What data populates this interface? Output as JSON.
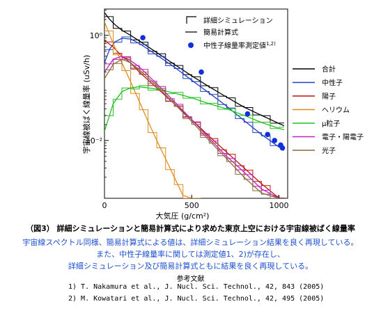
{
  "chart_data": {
    "type": "line",
    "title": "",
    "xlabel": "大気圧 (g/cm²)",
    "ylabel": "宇宙線被ばく線量率 (uSv/h)",
    "xlim": [
      0,
      1050
    ],
    "ylim_log10": [
      -3.1,
      0.5
    ],
    "y_scale": "log",
    "x_ticks": [
      0,
      500,
      1000
    ],
    "y_ticks": [
      {
        "value": 1,
        "label": "10⁰"
      },
      {
        "value": 0.01,
        "label": "10⁻²"
      }
    ],
    "style_legend": [
      {
        "label": "詳細シミュレーション",
        "style": "step"
      },
      {
        "label": "簡易計算式",
        "style": "line"
      },
      {
        "label": "中性子線量率測定値",
        "sup": "1,2)",
        "style": "marker"
      }
    ],
    "series_legend": [
      {
        "name": "合計",
        "color": "#000000"
      },
      {
        "name": "中性子",
        "color": "#1f3fbf"
      },
      {
        "name": "陽子",
        "color": "#c01010"
      },
      {
        "name": "ヘリウム",
        "color": "#e08a1e"
      },
      {
        "name": "μ粒子",
        "color": "#22c022"
      },
      {
        "name": "電子・陽電子",
        "color": "#c020c0"
      },
      {
        "name": "光子",
        "color": "#8a6a3a"
      }
    ],
    "series": [
      {
        "name": "合計",
        "x": [
          0,
          30,
          60,
          100,
          150,
          200,
          300,
          400,
          500,
          600,
          700,
          800,
          900,
          1000,
          1030
        ],
        "y": [
          2.7,
          2.0,
          1.6,
          1.25,
          1.0,
          0.78,
          0.47,
          0.28,
          0.17,
          0.105,
          0.067,
          0.043,
          0.03,
          0.021,
          0.019
        ]
      },
      {
        "name": "中性子",
        "x": [
          0,
          30,
          60,
          100,
          150,
          200,
          300,
          400,
          500,
          600,
          700,
          800,
          900,
          1000,
          1030
        ],
        "y": [
          0.3,
          0.55,
          0.75,
          0.88,
          0.85,
          0.7,
          0.42,
          0.25,
          0.14,
          0.08,
          0.045,
          0.024,
          0.013,
          0.0075,
          0.0065
        ]
      },
      {
        "name": "陽子",
        "x": [
          0,
          50,
          100,
          150,
          200,
          300,
          400,
          500,
          600,
          700,
          800,
          900,
          1000,
          1030
        ],
        "y": [
          0.8,
          0.6,
          0.4,
          0.3,
          0.2,
          0.1,
          0.05,
          0.025,
          0.012,
          0.006,
          0.003,
          0.0015,
          0.0008,
          0.0007
        ]
      },
      {
        "name": "ヘリウム",
        "x": [
          0,
          50,
          100,
          150,
          200,
          250,
          300,
          350,
          400,
          450,
          500,
          550
        ],
        "y": [
          1.8,
          0.7,
          0.3,
          0.13,
          0.055,
          0.023,
          0.01,
          0.0045,
          0.002,
          0.0009,
          0.0004,
          0.0002
        ]
      },
      {
        "name": "μ粒子",
        "x": [
          0,
          50,
          100,
          150,
          200,
          300,
          400,
          500,
          600,
          700,
          800,
          900,
          1000,
          1030
        ],
        "y": [
          0.015,
          0.05,
          0.085,
          0.1,
          0.105,
          0.095,
          0.08,
          0.065,
          0.05,
          0.04,
          0.03,
          0.022,
          0.017,
          0.016
        ]
      },
      {
        "name": "電子・陽電子",
        "x": [
          0,
          50,
          100,
          150,
          200,
          300,
          400,
          500,
          600,
          700,
          800,
          900,
          1000,
          1030
        ],
        "y": [
          0.2,
          0.35,
          0.4,
          0.33,
          0.25,
          0.12,
          0.055,
          0.025,
          0.011,
          0.005,
          0.0025,
          0.0012,
          0.0007,
          0.0006
        ]
      },
      {
        "name": "光子",
        "x": [
          0,
          50,
          100,
          150,
          200,
          300,
          400,
          500,
          600,
          700,
          800,
          900,
          1000,
          1030
        ],
        "y": [
          0.15,
          0.28,
          0.35,
          0.3,
          0.22,
          0.11,
          0.05,
          0.023,
          0.01,
          0.0045,
          0.002,
          0.001,
          0.0006,
          0.0005
        ]
      }
    ],
    "measured_neutron": {
      "x": [
        220,
        555,
        820,
        935,
        975,
        1010,
        1020
      ],
      "y": [
        0.9,
        0.2,
        0.032,
        0.013,
        0.01,
        0.0082,
        0.0072
      ]
    }
  },
  "caption": {
    "title": "（図3） 詳細シミュレーションと簡易計算式により求めた東京上空における宇宙線被ばく線量率",
    "desc1": "宇宙線スペクトル同様、簡易計算式による値は、詳細シミュレーション結果を良く再現している。",
    "desc2": "また、中性子線量率に関しては測定値1、2)が存在し、",
    "desc3": "詳細シミュレーション及び簡易計算式ともに結果を良く再現している。",
    "ref_heading": "参考文献",
    "ref1": "1)  T. Nakamura et al.,  J. Nucl. Sci. Technol.,  42,  843 (2005)",
    "ref2": "2)  M. Kowatari et al.,  J. Nucl. Sci. Technol.,  42,  495 (2005)"
  }
}
